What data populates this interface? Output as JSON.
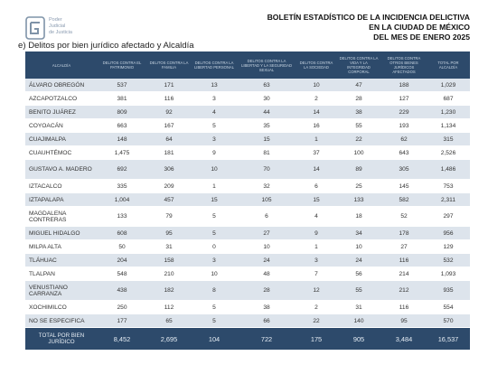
{
  "logo": {
    "lines": [
      "Poder",
      "Judicial",
      "de Justicia"
    ]
  },
  "report_title": [
    "BOLETÍN ESTADÍSTICO DE LA INCIDENCIA DELICTIVA",
    "EN LA CIUDAD DE MÉXICO",
    "DEL MES DE ENERO 2025"
  ],
  "subtitle": "e) Delitos por bien jurídico afectado y Alcaldía",
  "table": {
    "headers": [
      "ALCALDÍA",
      "DELITOS CONTRA EL PATRIMONIO",
      "DELITOS CONTRA LA FAMILIA",
      "DELITOS CONTRA LA LIBERTAD PERSONAL",
      "DELITOS CONTRA LA LIBERTAD Y LA SEGURIDAD SEXUAL",
      "DELITOS CONTRA LA SOCIEDAD",
      "DELITOS CONTRA LA VIDA Y LA INTEGRIDAD CORPORAL",
      "DELITOS CONTRA OTROS BIENES JURÍDICOS AFECTADOS",
      "TOTAL POR ALCALDÍA"
    ],
    "rows": [
      [
        "ÁLVARO OBREGÓN",
        "537",
        "171",
        "13",
        "63",
        "10",
        "47",
        "188",
        "1,029"
      ],
      [
        "AZCAPOTZALCO",
        "381",
        "116",
        "3",
        "30",
        "2",
        "28",
        "127",
        "687"
      ],
      [
        "BENITO JUÁREZ",
        "809",
        "92",
        "4",
        "44",
        "14",
        "38",
        "229",
        "1,230"
      ],
      [
        "COYOACÁN",
        "663",
        "167",
        "5",
        "35",
        "16",
        "55",
        "193",
        "1,134"
      ],
      [
        "CUAJIMALPA",
        "148",
        "64",
        "3",
        "15",
        "1",
        "22",
        "62",
        "315"
      ],
      [
        "CUAUHTÉMOC",
        "1,475",
        "181",
        "9",
        "81",
        "37",
        "100",
        "643",
        "2,526"
      ],
      [
        "GUSTAVO A. MADERO",
        "692",
        "306",
        "10",
        "70",
        "14",
        "89",
        "305",
        "1,486"
      ],
      [
        "IZTACALCO",
        "335",
        "209",
        "1",
        "32",
        "6",
        "25",
        "145",
        "753"
      ],
      [
        "IZTAPALAPA",
        "1,004",
        "457",
        "15",
        "105",
        "15",
        "133",
        "582",
        "2,311"
      ],
      [
        "MAGDALENA CONTRERAS",
        "133",
        "79",
        "5",
        "6",
        "4",
        "18",
        "52",
        "297"
      ],
      [
        "MIGUEL HIDALGO",
        "608",
        "95",
        "5",
        "27",
        "9",
        "34",
        "178",
        "956"
      ],
      [
        "MILPA ALTA",
        "50",
        "31",
        "0",
        "10",
        "1",
        "10",
        "27",
        "129"
      ],
      [
        "TLÁHUAC",
        "204",
        "158",
        "3",
        "24",
        "3",
        "24",
        "116",
        "532"
      ],
      [
        "TLALPAN",
        "548",
        "210",
        "10",
        "48",
        "7",
        "56",
        "214",
        "1,093"
      ],
      [
        "VENUSTIANO CARRANZA",
        "438",
        "182",
        "8",
        "28",
        "12",
        "55",
        "212",
        "935"
      ],
      [
        "XOCHIMILCO",
        "250",
        "112",
        "5",
        "38",
        "2",
        "31",
        "116",
        "554"
      ],
      [
        "NO SE ESPECIFICA",
        "177",
        "65",
        "5",
        "66",
        "22",
        "140",
        "95",
        "570"
      ]
    ],
    "footer": [
      "TOTAL POR BIEN JURÍDICO",
      "8,452",
      "2,695",
      "104",
      "722",
      "175",
      "905",
      "3,484",
      "16,537"
    ]
  },
  "colors": {
    "header_bg": "#2d4a6b",
    "row_alt": "#dde4ec"
  }
}
